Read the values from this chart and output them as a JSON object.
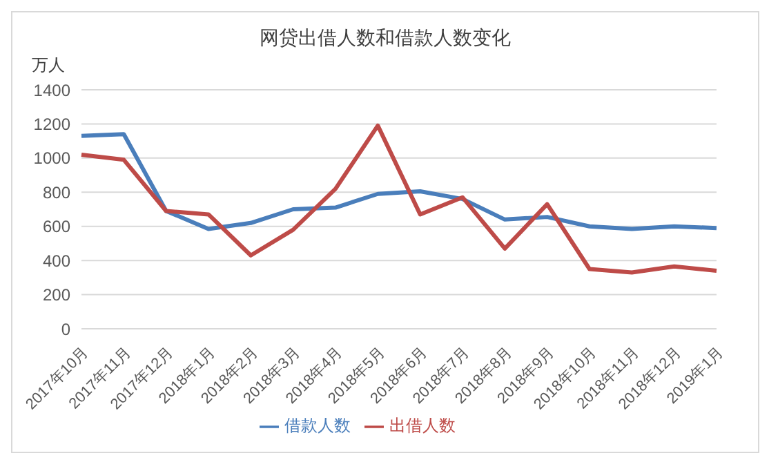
{
  "chart_data": {
    "type": "line",
    "title": "网贷出借人数和借款人数变化",
    "ylabel": "万人",
    "categories": [
      "2017年10月",
      "2017年11月",
      "2017年12月",
      "2018年1月",
      "2018年2月",
      "2018年3月",
      "2018年4月",
      "2018年5月",
      "2018年6月",
      "2018年7月",
      "2018年8月",
      "2018年9月",
      "2018年10月",
      "2018年11月",
      "2018年12月",
      "2019年1月"
    ],
    "series": [
      {
        "name": "借款人数",
        "color": "#4a7ebb",
        "values": [
          1130,
          1140,
          690,
          585,
          620,
          700,
          710,
          790,
          805,
          760,
          640,
          655,
          600,
          585,
          600,
          590
        ]
      },
      {
        "name": "出借人数",
        "color": "#be4b48",
        "values": [
          1020,
          990,
          690,
          670,
          430,
          580,
          820,
          1190,
          670,
          770,
          470,
          730,
          350,
          330,
          365,
          340
        ]
      }
    ],
    "ylim": [
      0,
      1400
    ],
    "yticks": [
      0,
      200,
      400,
      600,
      800,
      1000,
      1200,
      1400
    ],
    "grid": "y",
    "legend": "bottom",
    "marker": "none"
  }
}
